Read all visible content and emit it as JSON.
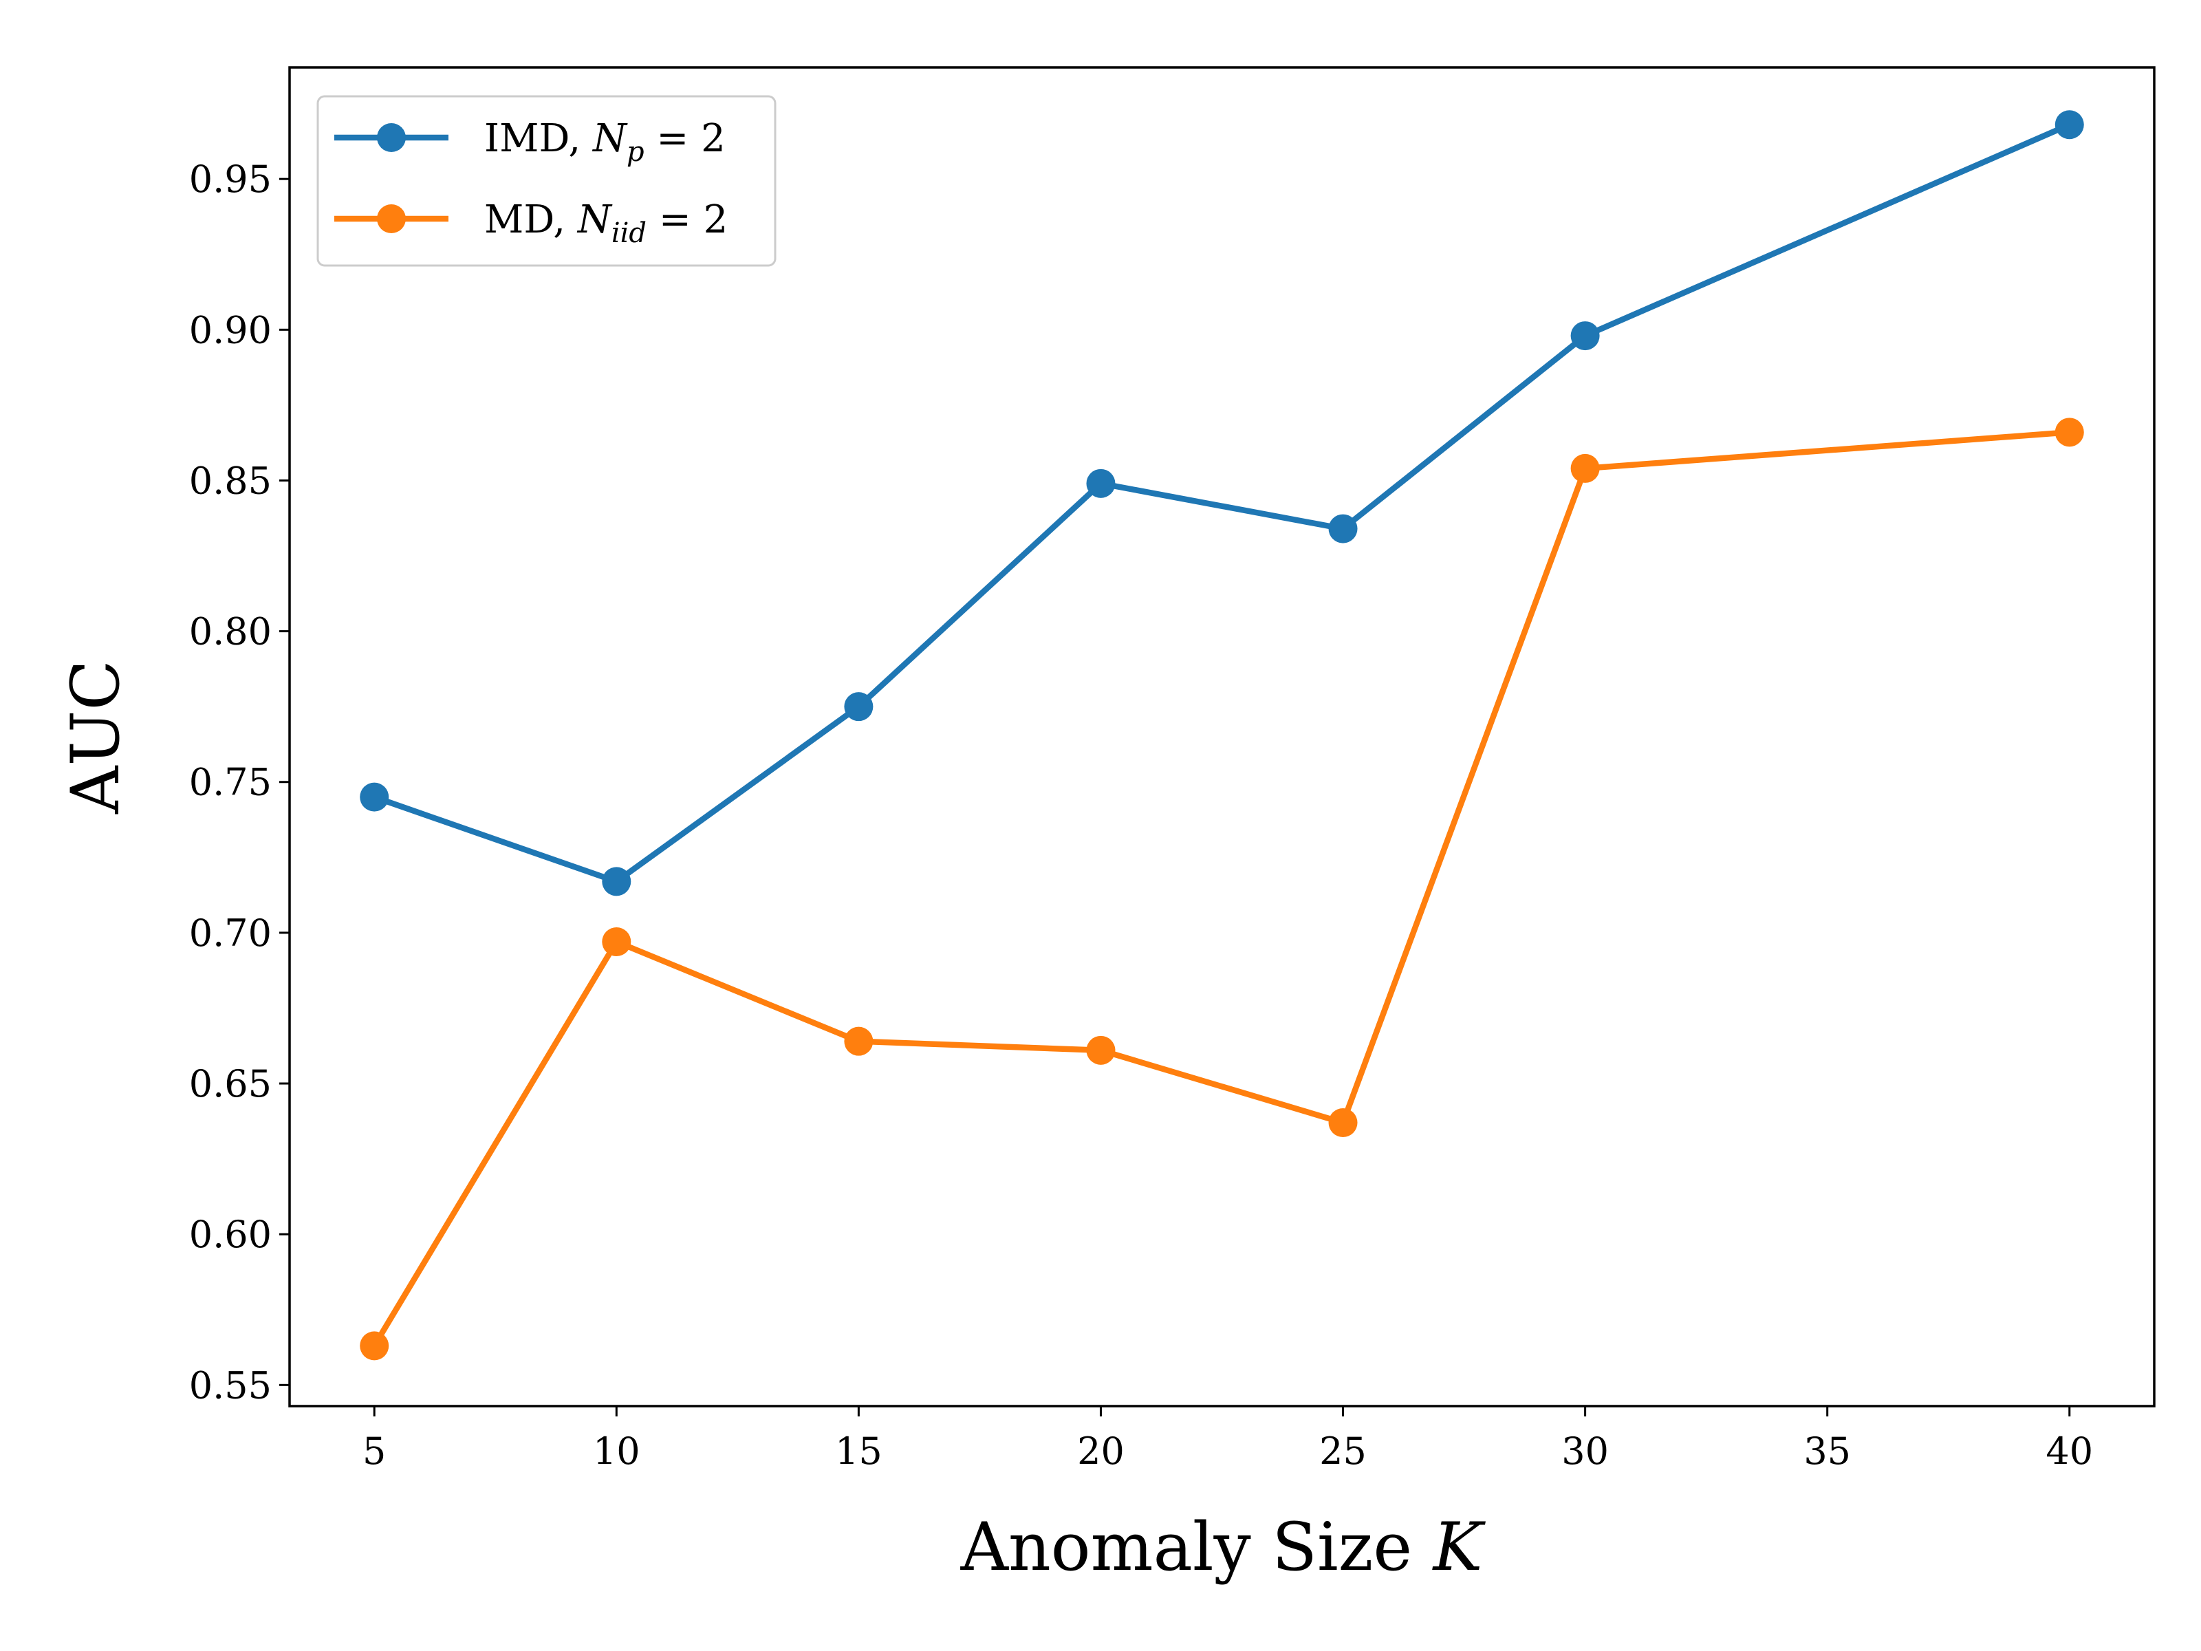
{
  "chart_data": {
    "type": "line",
    "x": [
      5,
      10,
      15,
      20,
      25,
      30,
      40
    ],
    "series": [
      {
        "name": "IMD, N_p = 2",
        "color": "#1f77b4",
        "values": [
          0.745,
          0.717,
          0.775,
          0.849,
          0.834,
          0.898,
          0.968
        ]
      },
      {
        "name": "MD, N_iid = 2",
        "color": "#ff7f0e",
        "values": [
          0.563,
          0.697,
          0.664,
          0.661,
          0.637,
          0.854,
          0.866
        ]
      }
    ],
    "xlabel": "Anomaly Size K",
    "ylabel": "AUC",
    "xlim": [
      3.25,
      41.75
    ],
    "ylim": [
      0.543,
      0.987
    ],
    "xticks": [
      5,
      10,
      15,
      20,
      25,
      30,
      35,
      40
    ],
    "yticks": [
      0.55,
      0.6,
      0.65,
      0.7,
      0.75,
      0.8,
      0.85,
      0.9,
      0.95
    ],
    "ytick_labels": [
      "0.55",
      "0.60",
      "0.65",
      "0.70",
      "0.75",
      "0.80",
      "0.85",
      "0.90",
      "0.95"
    ],
    "legend": {
      "position": "top-left",
      "entries": [
        {
          "prefix": "IMD, ",
          "var": "N",
          "sub": "p",
          "suffix": " = 2"
        },
        {
          "prefix": "MD, ",
          "var": "N",
          "sub": "iid",
          "suffix": " = 2"
        }
      ]
    },
    "grid": false
  }
}
